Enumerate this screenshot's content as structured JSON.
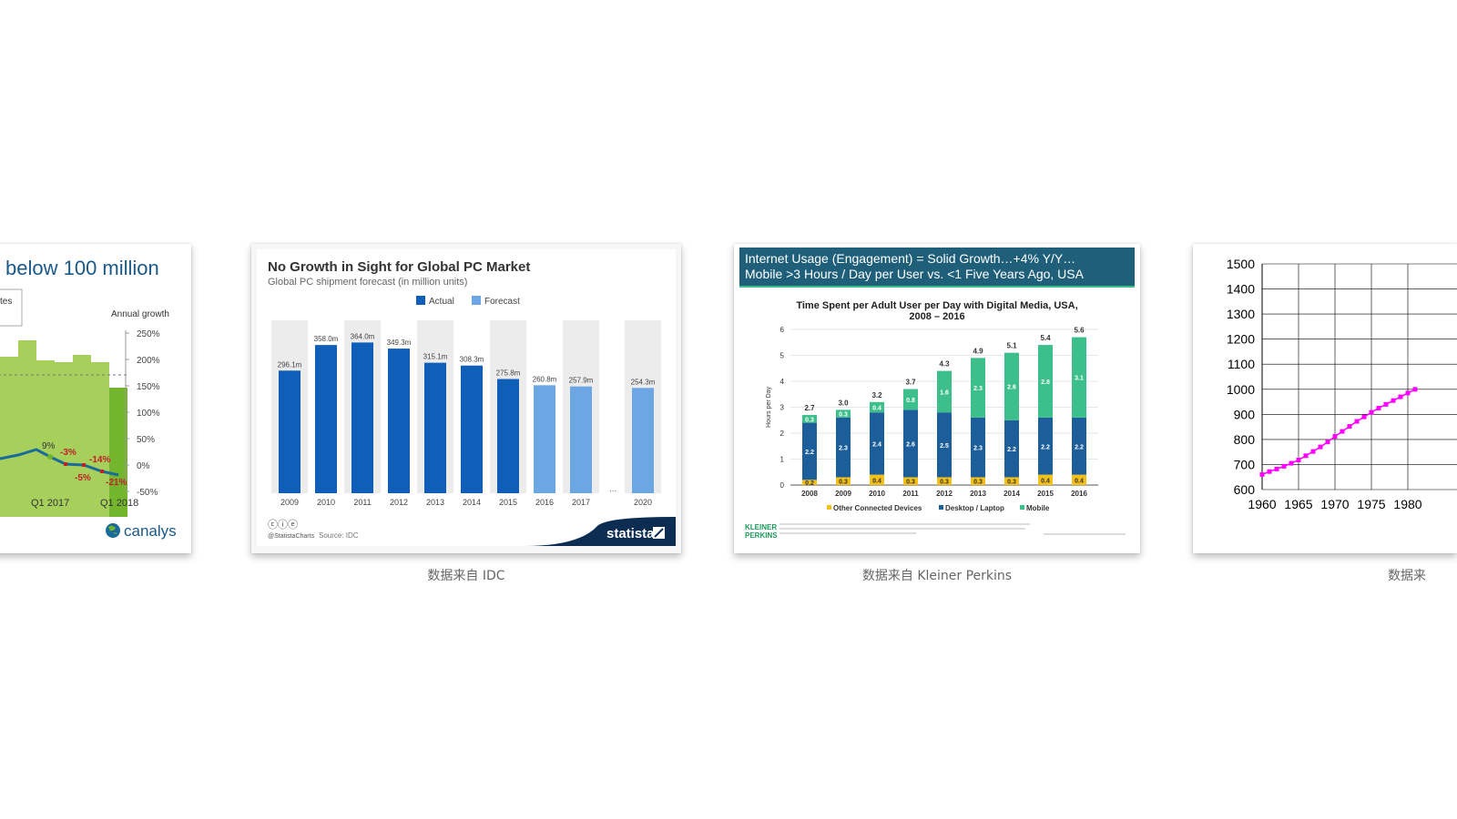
{
  "captions": {
    "statista": "数据来自 IDC",
    "kleiner": "数据来自 Kleiner Perkins",
    "right": "数据来"
  },
  "canalys": {
    "title": "below 100 million",
    "legend_fragment": "tes",
    "right_axis_label": "Annual growth",
    "right_ticks": [
      "250%",
      "200%",
      "150%",
      "100%",
      "50%",
      "0%",
      "-50%"
    ],
    "x_labels": [
      "Q1 2017",
      "Q1 2018"
    ],
    "growth_labels": [
      "9%",
      "-3%",
      "-5%",
      "-14%",
      "-21%"
    ],
    "brand": "canalys",
    "colors": {
      "bar": "#a6cf5b",
      "bar_dark": "#73b62e",
      "line": "#1a6a9a",
      "brand": "#1a5a8a",
      "neg": "#c0202a"
    }
  },
  "statista": {
    "title": "No Growth in Sight for Global PC Market",
    "subtitle": "Global PC shipment forecast (in million units)",
    "legend": [
      "Actual",
      "Forecast"
    ],
    "footer_source": "Source: IDC",
    "footer_handle": "@StatistaCharts",
    "brand": "statista",
    "ellipsis": "...",
    "colors": {
      "actual": "#0f5fb9",
      "forecast": "#6ca6e3",
      "bg": "#ececec",
      "brand_bg": "#0c2c52"
    }
  },
  "kleiner": {
    "header_line1": "Internet Usage (Engagement) = Solid Growth…+4% Y/Y…",
    "header_line2": "Mobile >3 Hours / Day per User vs. <1 Five Years Ago, USA",
    "chart_title_line1": "Time Spent per Adult User per Day with Digital Media, USA,",
    "chart_title_line2": "2008 – 2016",
    "ylabel": "Hours per Day",
    "legend": [
      "Other Connected Devices",
      "Desktop / Laptop",
      "Mobile"
    ],
    "brand_line1": "KLEINER",
    "brand_line2": "PERKINS",
    "colors": {
      "header_bg": "#1f5f7a",
      "other": "#f2c018",
      "desktop": "#1c5e99",
      "mobile": "#3dbf8c",
      "brand": "#1a9a5a"
    }
  },
  "right_chart": {
    "y_ticks": [
      "1500",
      "1400",
      "1300",
      "1200",
      "1100",
      "1000",
      "900",
      "800",
      "700",
      "600"
    ],
    "x_ticks": [
      "1960",
      "1965",
      "1970",
      "1975",
      "1980"
    ],
    "colors": {
      "line": "#ff00ff"
    }
  },
  "chart_data": [
    {
      "type": "bar",
      "title": "No Growth in Sight for Global PC Market",
      "subtitle": "Global PC shipment forecast (in million units)",
      "categories": [
        "2009",
        "2010",
        "2011",
        "2012",
        "2013",
        "2014",
        "2015",
        "2016",
        "2017",
        "2020"
      ],
      "series": [
        {
          "name": "Actual",
          "values": [
            296.1,
            358.0,
            364.0,
            349.3,
            315.1,
            308.3,
            275.8,
            null,
            null,
            null
          ]
        },
        {
          "name": "Forecast",
          "values": [
            null,
            null,
            null,
            null,
            null,
            null,
            null,
            260.8,
            257.9,
            254.3
          ]
        }
      ],
      "value_labels": [
        "296.1m",
        "358.0m",
        "364.0m",
        "349.3m",
        "315.1m",
        "308.3m",
        "275.8m",
        "260.8m",
        "257.9m",
        "254.3m"
      ]
    },
    {
      "type": "bar",
      "title": "Time Spent per Adult User per Day with Digital Media, USA, 2008 – 2016",
      "ylabel": "Hours per Day",
      "ylim": [
        0,
        6
      ],
      "categories": [
        "2008",
        "2009",
        "2010",
        "2011",
        "2012",
        "2013",
        "2014",
        "2015",
        "2016"
      ],
      "series": [
        {
          "name": "Other Connected Devices",
          "values": [
            0.2,
            0.3,
            0.4,
            0.3,
            0.3,
            0.3,
            0.3,
            0.4,
            0.4
          ]
        },
        {
          "name": "Desktop / Laptop",
          "values": [
            2.2,
            2.3,
            2.4,
            2.6,
            2.5,
            2.3,
            2.2,
            2.2,
            2.2
          ]
        },
        {
          "name": "Mobile",
          "values": [
            0.3,
            0.3,
            0.4,
            0.8,
            1.6,
            2.3,
            2.6,
            2.8,
            3.1
          ]
        }
      ],
      "totals": [
        2.7,
        3.0,
        3.2,
        3.7,
        4.3,
        4.9,
        5.1,
        5.4,
        5.6
      ]
    },
    {
      "type": "line",
      "x": [
        1960,
        1961,
        1962,
        1963,
        1964,
        1965,
        1966,
        1967,
        1968,
        1969,
        1970,
        1971,
        1972,
        1973,
        1974,
        1975,
        1976,
        1977,
        1978,
        1979,
        1980,
        1981
      ],
      "y": [
        660,
        672,
        682,
        693,
        705,
        718,
        735,
        752,
        770,
        790,
        812,
        832,
        852,
        872,
        890,
        908,
        925,
        940,
        955,
        970,
        985,
        1000
      ],
      "ylim": [
        600,
        1500
      ]
    }
  ]
}
